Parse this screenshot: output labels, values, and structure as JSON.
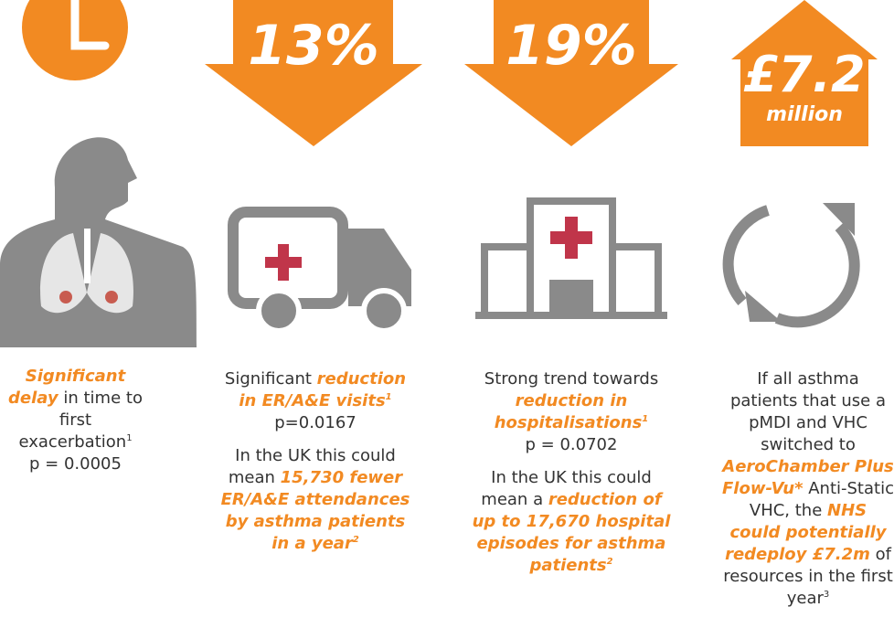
{
  "columns": [
    {
      "badge": null,
      "paragraphs": [
        [
          {
            "text": "Significant delay",
            "em": true
          },
          {
            "text": " in time to first exacerbation"
          },
          {
            "text": "1",
            "sup": true
          },
          {
            "text": " p = 0.0005",
            "br": true
          }
        ]
      ]
    },
    {
      "badge": {
        "text": "13%",
        "direction": "down"
      },
      "paragraphs": [
        [
          {
            "text": "Significant "
          },
          {
            "text": "reduction in ER/A&E visits",
            "em": true
          },
          {
            "text": "1",
            "sup": true,
            "em": true
          },
          {
            "text": "p=0.0167",
            "br": true
          }
        ],
        [
          {
            "text": "In the UK this could mean "
          },
          {
            "text": "15,730 fewer ER/A&E attendances by asthma patients in a year",
            "em": true
          },
          {
            "text": "2",
            "sup": true,
            "em": true
          }
        ]
      ]
    },
    {
      "badge": {
        "text": "19%",
        "direction": "down"
      },
      "paragraphs": [
        [
          {
            "text": "Strong trend towards "
          },
          {
            "text": "reduction in hospitalisations",
            "em": true
          },
          {
            "text": "1",
            "sup": true,
            "em": true
          },
          {
            "text": "p = 0.0702",
            "br": true
          }
        ],
        [
          {
            "text": "In the UK this could mean a "
          },
          {
            "text": "reduction of up to 17,670 hospital episodes for asthma patients",
            "em": true
          },
          {
            "text": "2",
            "sup": true,
            "em": true
          }
        ]
      ]
    },
    {
      "badge": {
        "text": "£7.2",
        "subtext": "million",
        "direction": "up"
      },
      "paragraphs": [
        [
          {
            "text": "If all asthma patients that use a pMDI and VHC switched to "
          },
          {
            "text": "AeroChamber Plus Flow-Vu*",
            "em": true
          },
          {
            "text": " Anti-Static VHC, the "
          },
          {
            "text": "NHS could potentially redeploy £7.2m",
            "em": true
          },
          {
            "text": " of resources in the first year"
          },
          {
            "text": "3",
            "sup": true
          }
        ]
      ]
    }
  ]
}
